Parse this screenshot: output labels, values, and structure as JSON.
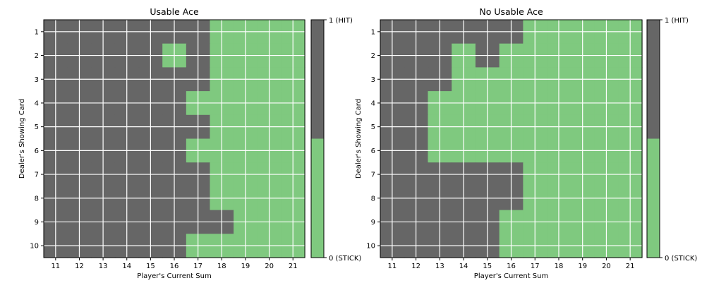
{
  "chart_data": [
    {
      "type": "heatmap",
      "title": "Usable Ace",
      "xlabel": "Player's Current Sum",
      "ylabel": "Dealer's Showing Card",
      "x": [
        11,
        12,
        13,
        14,
        15,
        16,
        17,
        18,
        19,
        20,
        21
      ],
      "y": [
        1,
        2,
        3,
        4,
        5,
        6,
        7,
        8,
        9,
        10
      ],
      "values": [
        [
          1,
          1,
          1,
          1,
          1,
          1,
          1,
          0,
          0,
          0,
          0
        ],
        [
          1,
          1,
          1,
          1,
          1,
          0,
          1,
          0,
          0,
          0,
          0
        ],
        [
          1,
          1,
          1,
          1,
          1,
          1,
          1,
          0,
          0,
          0,
          0
        ],
        [
          1,
          1,
          1,
          1,
          1,
          1,
          0,
          0,
          0,
          0,
          0
        ],
        [
          1,
          1,
          1,
          1,
          1,
          1,
          1,
          0,
          0,
          0,
          0
        ],
        [
          1,
          1,
          1,
          1,
          1,
          1,
          0,
          0,
          0,
          0,
          0
        ],
        [
          1,
          1,
          1,
          1,
          1,
          1,
          1,
          0,
          0,
          0,
          0
        ],
        [
          1,
          1,
          1,
          1,
          1,
          1,
          1,
          0,
          0,
          0,
          0
        ],
        [
          1,
          1,
          1,
          1,
          1,
          1,
          1,
          1,
          0,
          0,
          0
        ],
        [
          1,
          1,
          1,
          1,
          1,
          1,
          0,
          0,
          0,
          0,
          0
        ]
      ],
      "colorbar": {
        "top_label": "1 (HIT)",
        "bottom_label": "0 (STICK)",
        "range": [
          0,
          1
        ]
      },
      "colors": {
        "hit": "#666666",
        "stick": "#7fc97f",
        "grid": "#ffffff"
      },
      "grid": true
    },
    {
      "type": "heatmap",
      "title": "No Usable Ace",
      "xlabel": "Player's Current Sum",
      "ylabel": "Dealer's Showing Card",
      "x": [
        11,
        12,
        13,
        14,
        15,
        16,
        17,
        18,
        19,
        20,
        21
      ],
      "y": [
        1,
        2,
        3,
        4,
        5,
        6,
        7,
        8,
        9,
        10
      ],
      "values": [
        [
          1,
          1,
          1,
          1,
          1,
          1,
          0,
          0,
          0,
          0,
          0
        ],
        [
          1,
          1,
          1,
          0,
          1,
          0,
          0,
          0,
          0,
          0,
          0
        ],
        [
          1,
          1,
          1,
          0,
          0,
          0,
          0,
          0,
          0,
          0,
          0
        ],
        [
          1,
          1,
          0,
          0,
          0,
          0,
          0,
          0,
          0,
          0,
          0
        ],
        [
          1,
          1,
          0,
          0,
          0,
          0,
          0,
          0,
          0,
          0,
          0
        ],
        [
          1,
          1,
          0,
          0,
          0,
          0,
          0,
          0,
          0,
          0,
          0
        ],
        [
          1,
          1,
          1,
          1,
          1,
          1,
          0,
          0,
          0,
          0,
          0
        ],
        [
          1,
          1,
          1,
          1,
          1,
          1,
          0,
          0,
          0,
          0,
          0
        ],
        [
          1,
          1,
          1,
          1,
          1,
          0,
          0,
          0,
          0,
          0,
          0
        ],
        [
          1,
          1,
          1,
          1,
          1,
          0,
          0,
          0,
          0,
          0,
          0
        ]
      ],
      "colorbar": {
        "top_label": "1 (HIT)",
        "bottom_label": "0 (STICK)",
        "range": [
          0,
          1
        ]
      },
      "colors": {
        "hit": "#666666",
        "stick": "#7fc97f",
        "grid": "#ffffff"
      },
      "grid": true
    }
  ]
}
